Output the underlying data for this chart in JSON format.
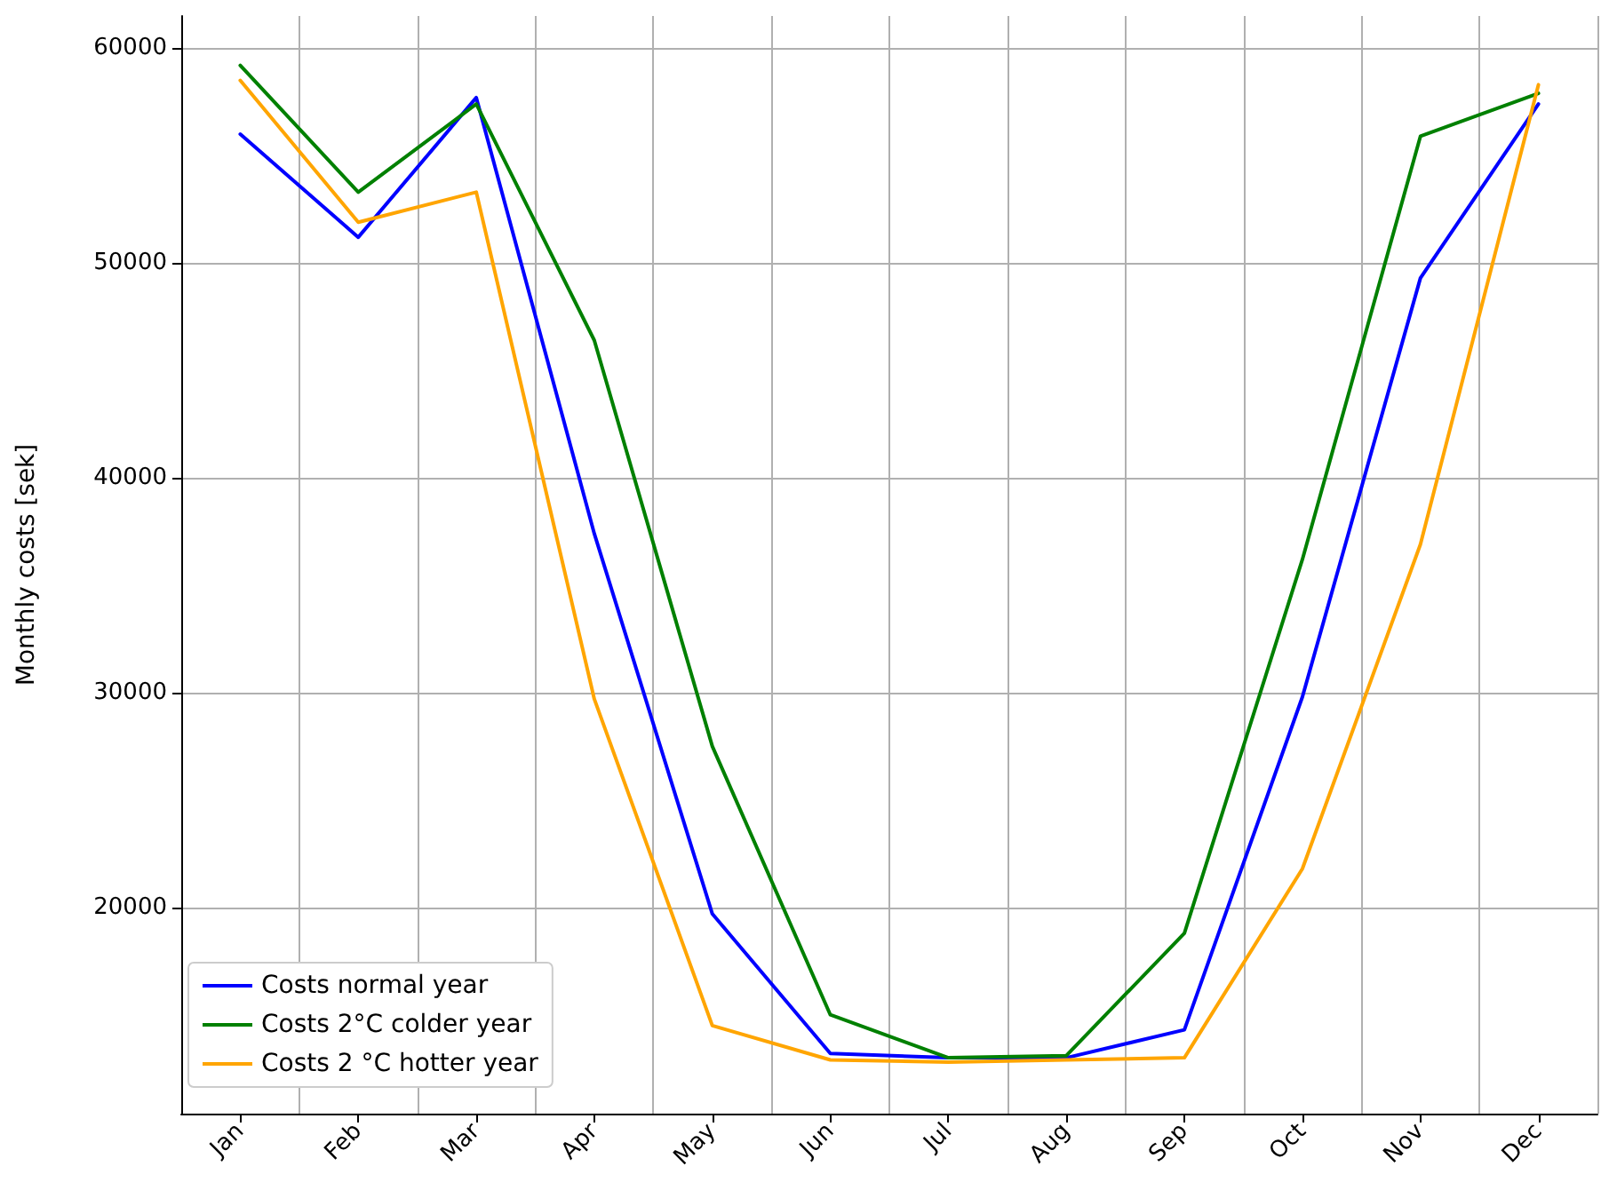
{
  "chart_data": {
    "type": "line",
    "ylabel": "Monthly costs [sek]",
    "categories": [
      "Jan",
      "Feb",
      "Mar",
      "Apr",
      "May",
      "Jun",
      "Jul",
      "Aug",
      "Sep",
      "Oct",
      "Nov",
      "Dec"
    ],
    "series": [
      {
        "name": "Costs normal year",
        "color": "#0000ff",
        "values": [
          56000,
          51200,
          57700,
          37400,
          19700,
          13200,
          13000,
          13000,
          14300,
          29800,
          49300,
          57400
        ]
      },
      {
        "name": "Costs 2°C colder year",
        "color": "#008000",
        "values": [
          59200,
          53300,
          57400,
          46400,
          27500,
          15000,
          13000,
          13100,
          18800,
          36200,
          55900,
          57900
        ]
      },
      {
        "name": "Costs 2 °C hotter year",
        "color": "#ffa500",
        "values": [
          58500,
          51900,
          53300,
          29700,
          14500,
          12900,
          12800,
          12900,
          13000,
          21800,
          36900,
          58300
        ]
      }
    ],
    "ylim": [
      10400,
      61500
    ],
    "yticks": [
      20000,
      30000,
      40000,
      50000,
      60000
    ],
    "grid": true,
    "legend": "bottom left",
    "line_style": "solid",
    "marker": "none"
  }
}
